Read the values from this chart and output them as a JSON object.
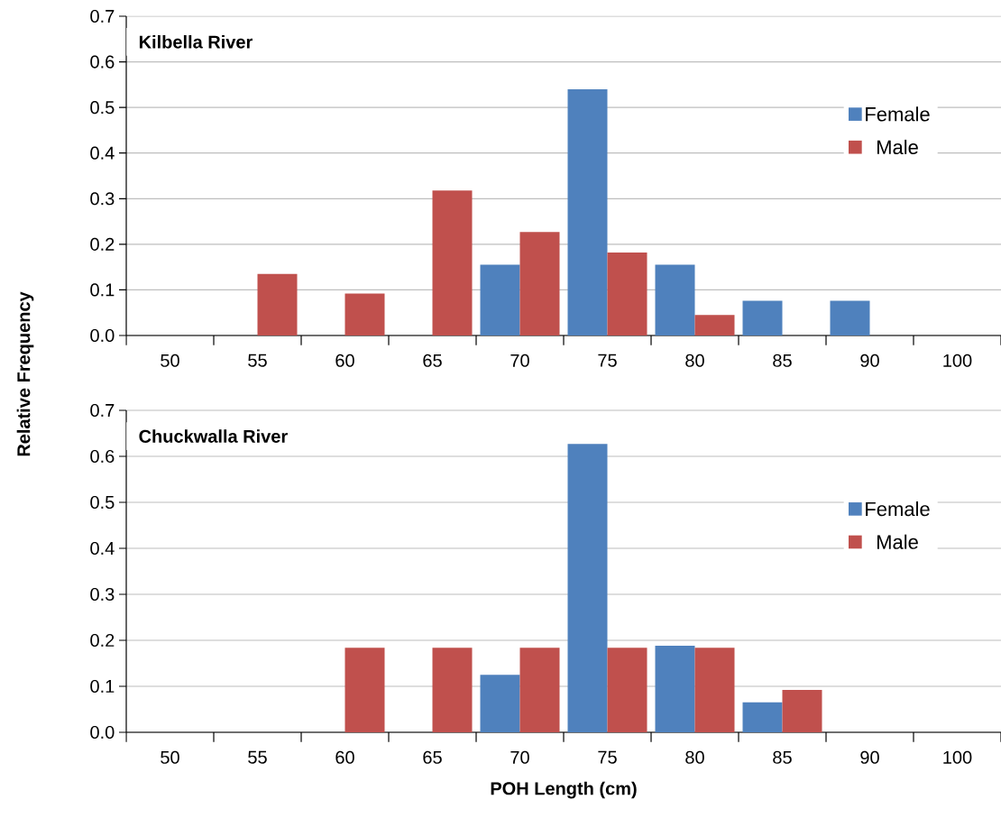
{
  "chart_data": [
    {
      "type": "bar",
      "title": "Kilbella River",
      "ylabel": "Relative Frequency",
      "categories": [
        "50",
        "55",
        "60",
        "65",
        "70",
        "75",
        "80",
        "85",
        "90",
        "100"
      ],
      "series": [
        {
          "name": "Female",
          "color": "#4f81bd",
          "values": [
            0,
            0,
            0,
            0,
            0.155,
            0.54,
            0.155,
            0.076,
            0.076,
            0
          ]
        },
        {
          "name": "Male",
          "color": "#c0504d",
          "values": [
            0,
            0.135,
            0.092,
            0.318,
            0.227,
            0.182,
            0.045,
            0,
            0,
            0
          ]
        }
      ],
      "ylim": [
        0,
        0.7
      ],
      "yticks": [
        {
          "value": 0,
          "label": "0.0"
        },
        0.1,
        0.2,
        0.3,
        0.4,
        0.5,
        0.6,
        0.7
      ],
      "grid": "y",
      "legend": "right"
    },
    {
      "type": "bar",
      "title": "Chuckwalla River",
      "xlabel": "POH Length (cm)",
      "categories": [
        "50",
        "55",
        "60",
        "65",
        "70",
        "75",
        "80",
        "85",
        "90",
        "100"
      ],
      "series": [
        {
          "name": "Female",
          "color": "#4f81bd",
          "values": [
            0,
            0,
            0,
            0,
            0.125,
            0.627,
            0.188,
            0.065,
            0,
            0
          ]
        },
        {
          "name": "Male",
          "color": "#c0504d",
          "values": [
            0,
            0,
            0.184,
            0.184,
            0.184,
            0.184,
            0.184,
            0.092,
            0,
            0
          ]
        }
      ],
      "ylim": [
        0,
        0.7
      ],
      "yticks": [
        {
          "value": 0,
          "label": "0.0"
        },
        0.1,
        0.2,
        0.3,
        0.4,
        0.5,
        0.6,
        0.7
      ],
      "grid": "y",
      "legend": "right"
    }
  ]
}
